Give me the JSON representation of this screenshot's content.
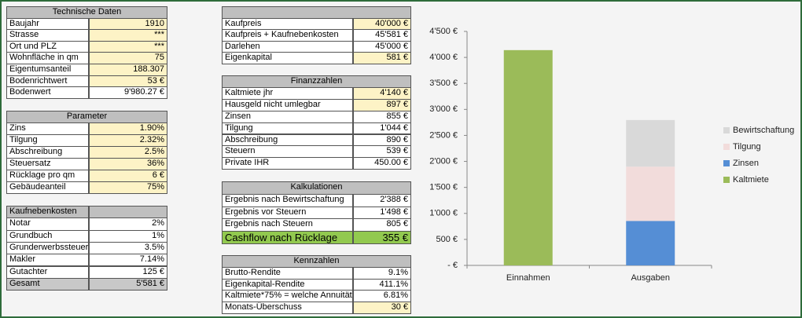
{
  "tables": [
    {
      "title": "Technische Daten",
      "rows": [
        [
          "Baujahr",
          "1910"
        ],
        [
          "Strasse",
          "***"
        ],
        [
          "Ort und PLZ",
          "***"
        ],
        [
          "Wohnfläche in qm",
          "75"
        ],
        [
          "Eigentumsanteil",
          "188.307"
        ],
        [
          "Bodenrichtwert",
          "53 €"
        ],
        [
          "Bodenwert",
          "9'980.27 €"
        ]
      ]
    },
    {
      "title": "Parameter",
      "rows": [
        [
          "Zins",
          "1.90%"
        ],
        [
          "Tilgung",
          "2.32%"
        ],
        [
          "Abschreibung",
          "2.5%"
        ],
        [
          "Steuersatz",
          "36%"
        ],
        [
          "Rücklage pro qm",
          "6 €"
        ],
        [
          "Gebäudeanteil",
          "75%"
        ]
      ]
    },
    {
      "title": "Kaufnebenkosten",
      "rows": [
        [
          "Notar",
          "2%"
        ],
        [
          "Grundbuch",
          "1%"
        ],
        [
          "Grunderwerbssteuer",
          "3.5%"
        ],
        [
          "Makler",
          "7.14%"
        ],
        [
          "Gutachter",
          "125 €"
        ],
        [
          "Gesamt",
          "5'581 €"
        ]
      ]
    },
    {
      "rows": [
        [
          "Kaufpreis",
          "40'000 €"
        ],
        [
          "Kaufpreis + Kaufnebenkosten",
          "45'581 €"
        ],
        [
          "Darlehen",
          "45'000 €"
        ],
        [
          "Eigenkapital",
          "581 €"
        ]
      ]
    },
    {
      "title": "Finanzzahlen",
      "rows": [
        [
          "Kaltmiete jhr",
          "4'140 €"
        ],
        [
          "Hausgeld nicht umlegbar",
          "897 €"
        ],
        [
          "Zinsen",
          "855 €"
        ],
        [
          "Tilgung",
          "1'044 €"
        ],
        [
          "Abschreibung",
          "890 €"
        ],
        [
          "Steuern",
          "539 €"
        ],
        [
          "Private IHR",
          "450.00 €"
        ]
      ]
    },
    {
      "title": "Kalkulationen",
      "rows": [
        [
          "Ergebnis nach Bewirtschaftung",
          "2'388 €"
        ],
        [
          "Ergebnis vor Steuern",
          "1'498 €"
        ],
        [
          "Ergebnis nach Steuern",
          "805 €"
        ],
        [
          "Cashflow nach Rücklage",
          "355 €"
        ]
      ]
    },
    {
      "title": "Kennzahlen",
      "rows": [
        [
          "Brutto-Rendite",
          "9.1%"
        ],
        [
          "Eigenkapital-Rendite",
          "411.1%"
        ],
        [
          "Kaltmiete*75% = welche Annuität?",
          "6.81%"
        ],
        [
          "Monats-Überschuss",
          "30 €"
        ]
      ]
    }
  ],
  "chart_data": {
    "type": "stacked_bar",
    "categories": [
      "Einnahmen",
      "Ausgaben"
    ],
    "series": [
      {
        "name": "Kaltmiete",
        "color": "#9bbb59",
        "values": [
          4140,
          null
        ]
      },
      {
        "name": "Zinsen",
        "color": "#558ed5",
        "values": [
          null,
          855
        ]
      },
      {
        "name": "Tilgung",
        "color": "#f2dcdb",
        "values": [
          null,
          1044
        ]
      },
      {
        "name": "Bewirtschaftung",
        "color": "#d9d9d9",
        "values": [
          null,
          897
        ]
      }
    ],
    "ylim": [
      0,
      4500
    ],
    "yticks": [
      {
        "value": 0,
        "label": "-   €"
      },
      {
        "value": 500,
        "label": "500 €"
      },
      {
        "value": 1000,
        "label": "1'000 €"
      },
      {
        "value": 1500,
        "label": "1'500 €"
      },
      {
        "value": 2000,
        "label": "2'000 €"
      },
      {
        "value": 2500,
        "label": "2'500 €"
      },
      {
        "value": 3000,
        "label": "3'000 €"
      },
      {
        "value": 3500,
        "label": "3'500 €"
      },
      {
        "value": 4000,
        "label": "4'000 €"
      },
      {
        "value": 4500,
        "label": "4'500 €"
      }
    ],
    "legend": "right"
  }
}
